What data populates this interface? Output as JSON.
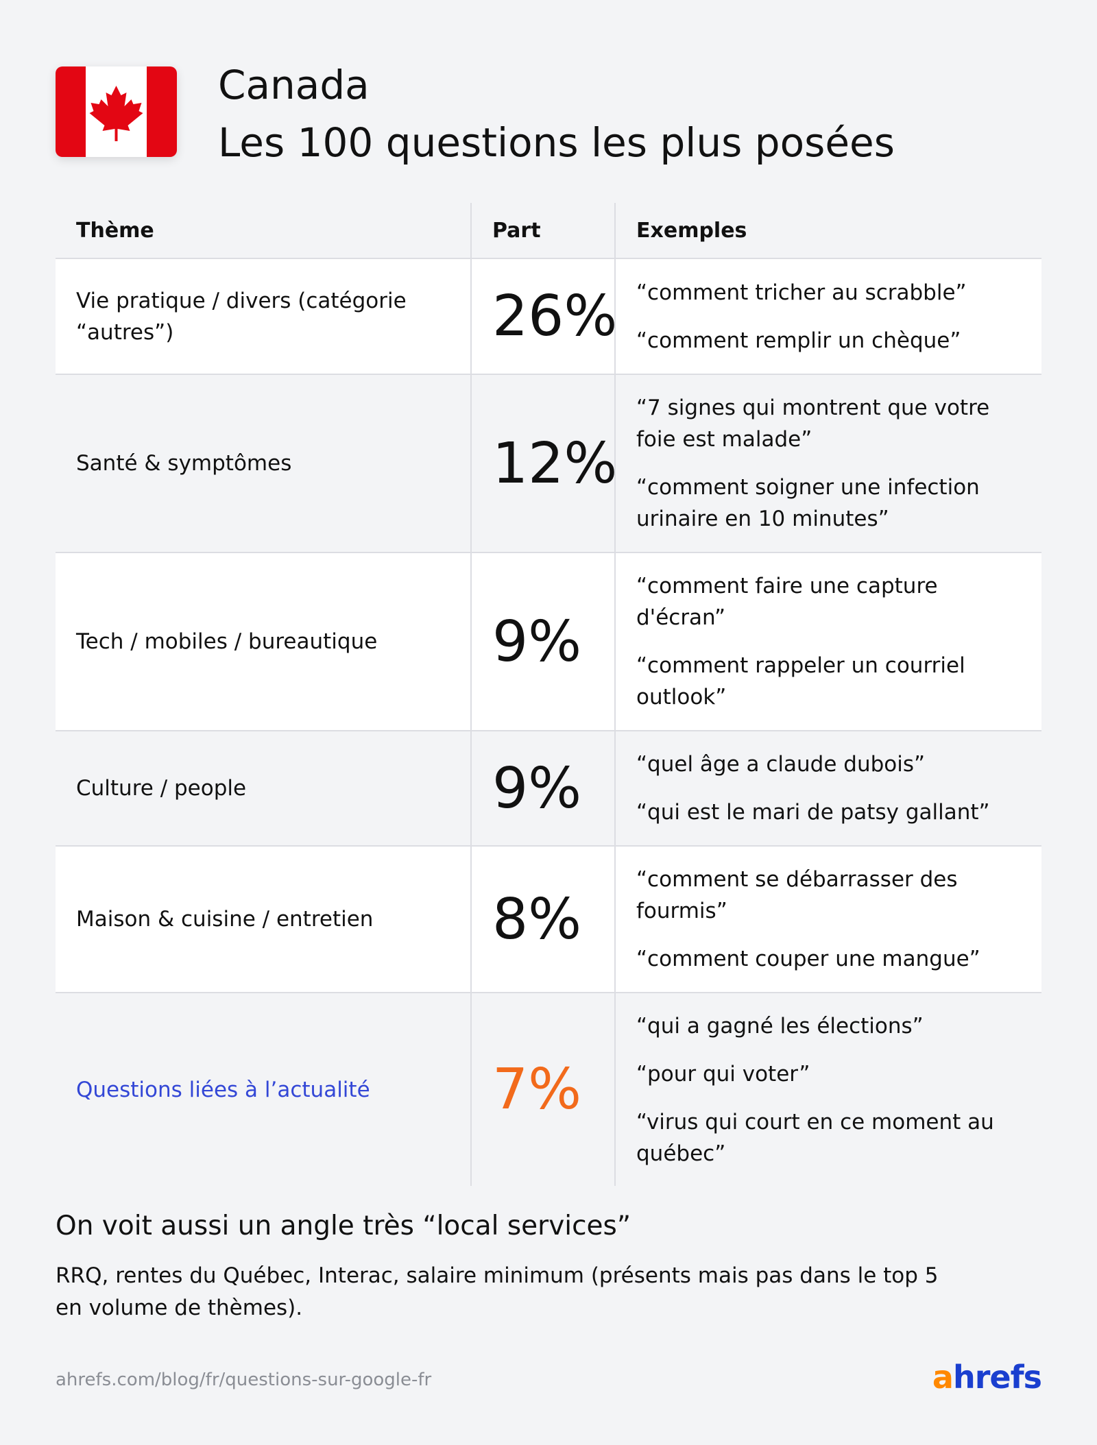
{
  "header": {
    "country": "Canada",
    "title": "Les 100 questions les plus posées"
  },
  "table": {
    "columns": [
      "Thème",
      "Part",
      "Exemples"
    ],
    "rows": [
      {
        "theme": "Vie pratique / divers (catégorie “autres”)",
        "share": "26%",
        "examples": [
          "“comment tricher au scrabble”",
          "“comment remplir un chèque”"
        ]
      },
      {
        "theme": "Santé & symptômes",
        "share": "12%",
        "examples": [
          "“7 signes qui montrent que votre foie est malade”",
          "“comment soigner une infection urinaire en 10 minutes”"
        ]
      },
      {
        "theme": "Tech / mobiles / bureautique",
        "share": "9%",
        "examples": [
          "“comment faire une capture d'écran”",
          "“comment rappeler un courriel outlook”"
        ]
      },
      {
        "theme": "Culture / people",
        "share": "9%",
        "examples": [
          "“quel âge a claude dubois”",
          "“qui est le mari de patsy gallant”"
        ]
      },
      {
        "theme": "Maison & cuisine / entretien",
        "share": "8%",
        "examples": [
          "“comment se débarrasser des fourmis”",
          "“comment couper une mangue”"
        ]
      },
      {
        "theme": "Questions liées à l’actualité",
        "share": "7%",
        "examples": [
          "“qui a gagné les élections”",
          "“pour qui voter”",
          "“virus qui court en ce moment au québec”"
        ],
        "theme_color": "#3347d6",
        "share_color": "#f26a1b"
      }
    ]
  },
  "note": {
    "title": "On voit aussi un angle très “local services”",
    "text": "RRQ, rentes du Québec, Interac, salaire minimum (présents mais pas dans le top 5 en volume de thèmes)."
  },
  "footer": {
    "url": "ahrefs.com/blog/fr/questions-sur-google-fr",
    "logo": "ahrefs"
  }
}
